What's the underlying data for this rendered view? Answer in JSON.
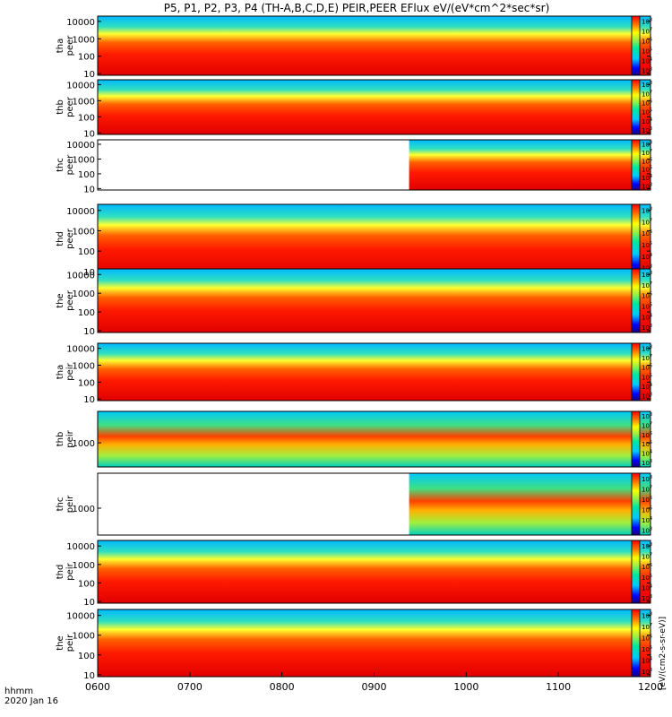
{
  "title": "P5, P1, P2, P3, P4 (TH-A,B,C,D,E) PEIR,PEER EFlux eV/(eV*cm^2*sec*sr)",
  "colorbar_label": "[eV/(cm2-s-sr-eV)]",
  "xaxis": {
    "label_line1": "hhmm",
    "label_line2": "2020 Jan 16",
    "ticks": [
      "0600",
      "0700",
      "0800",
      "0900",
      "1000",
      "1100",
      "1200"
    ]
  },
  "chart_data": {
    "type": "heatmap",
    "title": "P5, P1, P2, P3, P4 (TH-A,B,C,D,E) PEIR,PEER EFlux eV/(eV*cm^2*sec*sr)",
    "x_range_hours": [
      6,
      12
    ],
    "x_tick_labels": [
      "0600",
      "0700",
      "0800",
      "0900",
      "1000",
      "1100",
      "1200"
    ],
    "colorbar_exponents": [
      3,
      4,
      5,
      6,
      7,
      8
    ],
    "colorbar_label": "[eV/(cm2-s-sr-eV)]",
    "panels": [
      {
        "ylabel1": "tha",
        "ylabel2": "peer",
        "scale": "log",
        "ylim": [
          8,
          20000
        ],
        "yticks": [
          "10000",
          "1000",
          "100",
          "10"
        ],
        "data_start_hour": 6.0,
        "data_end_hour": 12.0
      },
      {
        "ylabel1": "thb",
        "ylabel2": "peer",
        "scale": "log",
        "ylim": [
          8,
          20000
        ],
        "yticks": [
          "10000",
          "1000",
          "100",
          "10"
        ],
        "data_start_hour": 6.0,
        "data_end_hour": 12.0
      },
      {
        "ylabel1": "thc",
        "ylabel2": "peer",
        "scale": "log",
        "ylim": [
          8,
          20000
        ],
        "yticks": [
          "10000",
          "1000",
          "100",
          "10"
        ],
        "data_start_hour": 9.38,
        "data_end_hour": 12.0
      },
      {
        "ylabel1": "thd",
        "ylabel2": "peer",
        "scale": "log",
        "ylim": [
          8,
          20000
        ],
        "yticks": [
          "10000",
          "1000",
          "100",
          "10"
        ],
        "data_start_hour": 6.0,
        "data_end_hour": 12.0
      },
      {
        "ylabel1": "the",
        "ylabel2": "peer",
        "scale": "log",
        "ylim": [
          8,
          20000
        ],
        "yticks": [
          "10000",
          "1000",
          "100",
          "10"
        ],
        "data_start_hour": 6.0,
        "data_end_hour": 12.0
      },
      {
        "ylabel1": "tha",
        "ylabel2": "peir",
        "scale": "log",
        "ylim": [
          8,
          20000
        ],
        "yticks": [
          "10000",
          "1000",
          "100",
          "10"
        ],
        "data_start_hour": 6.0,
        "data_end_hour": 12.0
      },
      {
        "ylabel1": "thb",
        "ylabel2": "peir",
        "scale": "log",
        "ylim": [
          100,
          20000
        ],
        "yticks": [
          "1000"
        ],
        "data_start_hour": 6.0,
        "data_end_hour": 12.0
      },
      {
        "ylabel1": "thc",
        "ylabel2": "peir",
        "scale": "log",
        "ylim": [
          100,
          20000
        ],
        "yticks": [
          "1000"
        ],
        "data_start_hour": 9.38,
        "data_end_hour": 12.0
      },
      {
        "ylabel1": "thd",
        "ylabel2": "peir",
        "scale": "log",
        "ylim": [
          8,
          20000
        ],
        "yticks": [
          "10000",
          "1000",
          "100",
          "10"
        ],
        "data_start_hour": 6.0,
        "data_end_hour": 12.0
      },
      {
        "ylabel1": "the",
        "ylabel2": "peir",
        "scale": "log",
        "ylim": [
          8,
          20000
        ],
        "yticks": [
          "10000",
          "1000",
          "100",
          "10"
        ],
        "data_start_hour": 6.0,
        "data_end_hour": 12.0
      }
    ]
  }
}
